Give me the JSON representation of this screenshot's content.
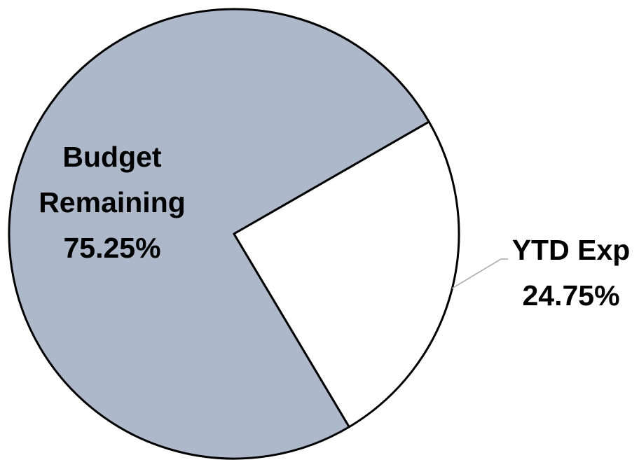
{
  "chart_data": {
    "type": "pie",
    "categories": [
      "Budget Remaining",
      "YTD Exp"
    ],
    "values": [
      75.25,
      24.75
    ],
    "value_labels": [
      "75.25%",
      "24.75%"
    ],
    "colors": [
      "#adb9ca",
      "#ffffff"
    ]
  }
}
